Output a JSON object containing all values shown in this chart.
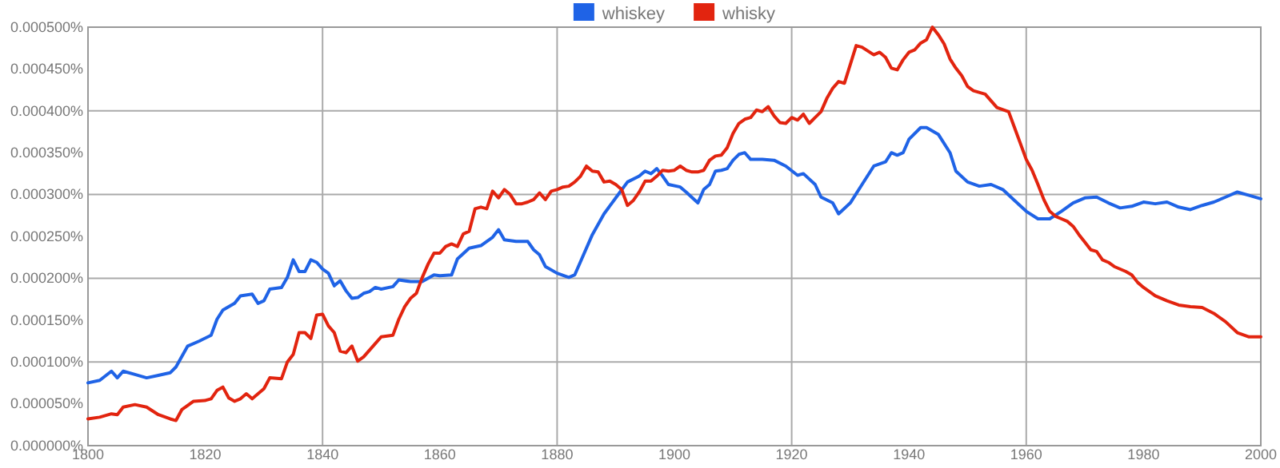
{
  "chart_data": {
    "type": "line",
    "legend": "top",
    "grid": true,
    "xlim": [
      1800,
      2000
    ],
    "xticks": [
      1800,
      1820,
      1840,
      1860,
      1880,
      1900,
      1920,
      1940,
      1960,
      1980,
      2000
    ],
    "ylim": [
      0,
      0.0005
    ],
    "yticks": [
      {
        "value": 0,
        "label": "0.000000%"
      },
      {
        "value": 5e-05,
        "label": "0.000050%"
      },
      {
        "value": 0.0001,
        "label": "0.000100%"
      },
      {
        "value": 0.00015,
        "label": "0.000150%"
      },
      {
        "value": 0.0002,
        "label": "0.000200%"
      },
      {
        "value": 0.00025,
        "label": "0.000250%"
      },
      {
        "value": 0.0003,
        "label": "0.000300%"
      },
      {
        "value": 0.00035,
        "label": "0.000350%"
      },
      {
        "value": 0.0004,
        "label": "0.000400%"
      },
      {
        "value": 0.00045,
        "label": "0.000450%"
      },
      {
        "value": 0.0005,
        "label": "0.000500%"
      }
    ],
    "series": [
      {
        "name": "whiskey",
        "color": "#1f63e6",
        "x": [
          1800,
          1802,
          1804,
          1805,
          1806,
          1808,
          1810,
          1812,
          1814,
          1815,
          1817,
          1819,
          1821,
          1822,
          1823,
          1825,
          1826,
          1828,
          1829,
          1830,
          1831,
          1833,
          1834,
          1835,
          1836,
          1837,
          1838,
          1839,
          1840,
          1841,
          1842,
          1843,
          1844,
          1845,
          1846,
          1847,
          1848,
          1849,
          1850,
          1852,
          1853,
          1855,
          1857,
          1859,
          1860,
          1862,
          1863,
          1865,
          1867,
          1869,
          1870,
          1871,
          1873,
          1875,
          1876,
          1877,
          1878,
          1880,
          1882,
          1883,
          1884,
          1886,
          1888,
          1890,
          1892,
          1894,
          1895,
          1896,
          1897,
          1898,
          1899,
          1901,
          1902,
          1904,
          1905,
          1906,
          1907,
          1908,
          1909,
          1910,
          1911,
          1912,
          1913,
          1915,
          1917,
          1919,
          1921,
          1922,
          1924,
          1925,
          1927,
          1928,
          1930,
          1932,
          1934,
          1936,
          1937,
          1938,
          1939,
          1940,
          1942,
          1943,
          1945,
          1947,
          1948,
          1950,
          1952,
          1954,
          1956,
          1958,
          1960,
          1962,
          1964,
          1966,
          1968,
          1970,
          1972,
          1974,
          1976,
          1978,
          1980,
          1982,
          1984,
          1986,
          1988,
          1990,
          1992,
          1994,
          1996,
          1998,
          2000
        ],
        "values": [
          7.5e-05,
          7.8e-05,
          8.9e-05,
          8.1e-05,
          8.9e-05,
          8.5e-05,
          8.1e-05,
          8.4e-05,
          8.7e-05,
          9.4e-05,
          0.000119,
          0.000125,
          0.000132,
          0.000151,
          0.000162,
          0.00017,
          0.000179,
          0.000181,
          0.00017,
          0.000173,
          0.000187,
          0.000189,
          0.000201,
          0.000222,
          0.000208,
          0.000208,
          0.000222,
          0.000219,
          0.000211,
          0.000206,
          0.000191,
          0.000197,
          0.000185,
          0.000176,
          0.000177,
          0.000182,
          0.000184,
          0.000189,
          0.000187,
          0.00019,
          0.000198,
          0.000196,
          0.000196,
          0.000204,
          0.000203,
          0.000204,
          0.000223,
          0.000236,
          0.000239,
          0.000249,
          0.000258,
          0.000246,
          0.000244,
          0.000244,
          0.000234,
          0.000228,
          0.000214,
          0.000206,
          0.000201,
          0.000204,
          0.00022,
          0.000252,
          0.000277,
          0.000296,
          0.000315,
          0.000322,
          0.000328,
          0.000325,
          0.000331,
          0.000322,
          0.000312,
          0.000309,
          0.000303,
          0.00029,
          0.000306,
          0.000312,
          0.000328,
          0.000329,
          0.000331,
          0.000341,
          0.000348,
          0.00035,
          0.000342,
          0.000342,
          0.000341,
          0.000334,
          0.000323,
          0.000325,
          0.000312,
          0.000297,
          0.00029,
          0.000277,
          0.00029,
          0.000312,
          0.000334,
          0.000339,
          0.00035,
          0.000347,
          0.00035,
          0.000366,
          0.00038,
          0.00038,
          0.000372,
          0.00035,
          0.000328,
          0.000315,
          0.00031,
          0.000312,
          0.000306,
          0.000293,
          0.00028,
          0.000271,
          0.000271,
          0.00028,
          0.00029,
          0.000296,
          0.000297,
          0.00029,
          0.000284,
          0.000286,
          0.000291,
          0.000289,
          0.000291,
          0.000285,
          0.000282,
          0.000287,
          0.000291,
          0.000297,
          0.000303,
          0.000299,
          0.000295
        ]
      },
      {
        "name": "whisky",
        "color": "#e2240f",
        "x": [
          1800,
          1802,
          1804,
          1805,
          1806,
          1808,
          1810,
          1812,
          1814,
          1815,
          1816,
          1818,
          1820,
          1821,
          1822,
          1823,
          1824,
          1825,
          1826,
          1827,
          1828,
          1830,
          1831,
          1833,
          1834,
          1835,
          1836,
          1837,
          1838,
          1839,
          1840,
          1841,
          1842,
          1843,
          1844,
          1845,
          1846,
          1847,
          1849,
          1850,
          1852,
          1853,
          1854,
          1855,
          1856,
          1857,
          1858,
          1859,
          1860,
          1861,
          1862,
          1863,
          1864,
          1865,
          1866,
          1867,
          1868,
          1869,
          1870,
          1871,
          1872,
          1873,
          1874,
          1875,
          1876,
          1877,
          1878,
          1879,
          1880,
          1881,
          1882,
          1883,
          1884,
          1885,
          1886,
          1887,
          1888,
          1889,
          1890,
          1891,
          1892,
          1893,
          1894,
          1895,
          1896,
          1897,
          1898,
          1899,
          1900,
          1901,
          1902,
          1903,
          1904,
          1905,
          1906,
          1907,
          1908,
          1909,
          1910,
          1911,
          1912,
          1913,
          1914,
          1915,
          1916,
          1917,
          1918,
          1919,
          1920,
          1921,
          1922,
          1923,
          1924,
          1925,
          1926,
          1927,
          1928,
          1929,
          1931,
          1932,
          1934,
          1935,
          1936,
          1937,
          1938,
          1939,
          1940,
          1941,
          1942,
          1943,
          1944,
          1945,
          1946,
          1947,
          1948,
          1949,
          1950,
          1951,
          1953,
          1955,
          1957,
          1958,
          1959,
          1960,
          1961,
          1962,
          1963,
          1964,
          1965,
          1966,
          1967,
          1968,
          1969,
          1970,
          1971,
          1972,
          1973,
          1974,
          1975,
          1977,
          1978,
          1979,
          1980,
          1982,
          1984,
          1986,
          1988,
          1990,
          1992,
          1994,
          1996,
          1998,
          2000
        ],
        "values": [
          3.2e-05,
          3.4e-05,
          3.8e-05,
          3.7e-05,
          4.6e-05,
          4.9e-05,
          4.6e-05,
          3.7e-05,
          3.2e-05,
          3e-05,
          4.3e-05,
          5.3e-05,
          5.4e-05,
          5.6e-05,
          6.6e-05,
          7e-05,
          5.7e-05,
          5.3e-05,
          5.6e-05,
          6.2e-05,
          5.6e-05,
          6.8e-05,
          8.1e-05,
          8e-05,
          0.0001,
          0.000109,
          0.000135,
          0.000135,
          0.000128,
          0.000156,
          0.000157,
          0.000143,
          0.000135,
          0.000113,
          0.000111,
          0.000119,
          0.000101,
          0.000106,
          0.000122,
          0.00013,
          0.000132,
          0.000151,
          0.000166,
          0.000176,
          0.000182,
          0.000201,
          0.000217,
          0.00023,
          0.00023,
          0.000238,
          0.000241,
          0.000238,
          0.000253,
          0.000256,
          0.000283,
          0.000285,
          0.000283,
          0.000304,
          0.000296,
          0.000306,
          0.0003,
          0.000289,
          0.000289,
          0.000291,
          0.000294,
          0.000302,
          0.000294,
          0.000304,
          0.000306,
          0.000309,
          0.00031,
          0.000315,
          0.000322,
          0.000334,
          0.000328,
          0.000327,
          0.000315,
          0.000316,
          0.000312,
          0.000306,
          0.000287,
          0.000293,
          0.000303,
          0.000316,
          0.000316,
          0.000322,
          0.000329,
          0.000328,
          0.000329,
          0.000334,
          0.000329,
          0.000327,
          0.000327,
          0.000329,
          0.000341,
          0.000346,
          0.000347,
          0.000356,
          0.000373,
          0.000385,
          0.00039,
          0.000392,
          0.000401,
          0.000399,
          0.000405,
          0.000394,
          0.000386,
          0.000385,
          0.000392,
          0.000389,
          0.000396,
          0.000385,
          0.000392,
          0.000399,
          0.000415,
          0.000427,
          0.000435,
          0.000433,
          0.000478,
          0.000476,
          0.000467,
          0.00047,
          0.000464,
          0.000451,
          0.000449,
          0.000461,
          0.00047,
          0.000473,
          0.000481,
          0.000485,
          0.0005,
          0.000491,
          0.00048,
          0.000462,
          0.000451,
          0.000442,
          0.000429,
          0.000424,
          0.00042,
          0.000404,
          0.000399,
          0.00038,
          0.000361,
          0.000342,
          0.000329,
          0.000312,
          0.000294,
          0.00028,
          0.000274,
          0.000271,
          0.000268,
          0.000262,
          0.000252,
          0.000243,
          0.000234,
          0.000232,
          0.000222,
          0.000219,
          0.000214,
          0.000208,
          0.000204,
          0.000195,
          0.000189,
          0.000179,
          0.000173,
          0.000168,
          0.000166,
          0.000165,
          0.000158,
          0.000148,
          0.000135,
          0.00013,
          0.00013
        ]
      }
    ]
  }
}
